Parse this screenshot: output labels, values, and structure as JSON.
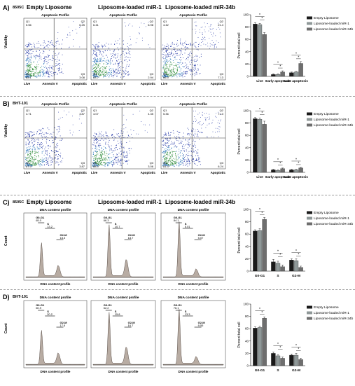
{
  "colors": {
    "empty": "#1a1a1a",
    "mir1": "#8f9898",
    "mir34b": "#6e6e6e",
    "hist_fill": "#b8aca3",
    "scatter_hot": "#2e8b3a",
    "scatter_cool": "#2b3ea8"
  },
  "panels": [
    {
      "letter": "A)",
      "cell_line": "8505C",
      "group_titles": [
        "Empty Liposome",
        "Liposome-loaded miR-1",
        "Liposome-loaded miR-34b"
      ],
      "plot_title": "Apoptosis Profile",
      "ylabel": "Viability",
      "xlabels": [
        "Live",
        "Annexin V",
        "Apoptotic"
      ],
      "quadrants": [
        {
          "Q1": "Q1",
          "Q1v": "5.56",
          "Q2": "Q2",
          "Q2v": "6.25",
          "Q3": "Q3",
          "Q3v": "3.08",
          "Q4": "Q4",
          "Q4v": "85.1"
        },
        {
          "Q1": "Q1",
          "Q1v": "6.41",
          "Q2": "Q2",
          "Q2v": "6.98",
          "Q3": "Q3",
          "Q3v": "2.94",
          "Q4": "Q4",
          "Q4v": "83.7"
        },
        {
          "Q1": "Q1",
          "Q1v": "4.42",
          "Q2": "Q2",
          "Q2v": "21.4",
          "Q3": "Q3",
          "Q3v": "7.13",
          "Q4": "Q4",
          "Q4v": "66.9"
        }
      ]
    },
    {
      "letter": "B)",
      "cell_line": "BHT-101",
      "group_titles": [
        "",
        "",
        ""
      ],
      "plot_title": "Apoptosis Profile",
      "ylabel": "Viability",
      "xlabels": [
        "Live",
        "Annexin V",
        "Apoptotic"
      ],
      "quadrants": [
        {
          "Q1": "Q1",
          "Q1v": "4.71",
          "Q2": "Q2",
          "Q2v": "3.87",
          "Q3": "Q3",
          "Q3v": "3.87",
          "Q4": "Q4",
          "Q4v": "87.5"
        },
        {
          "Q1": "Q1",
          "Q1v": "4.07",
          "Q2": "Q2",
          "Q2v": "4.35",
          "Q3": "Q3",
          "Q3v": "3.06",
          "Q4": "Q4",
          "Q4v": "88.0"
        },
        {
          "Q1": "Q1",
          "Q1v": "5.36",
          "Q2": "Q2",
          "Q2v": "7.13",
          "Q3": "Q3",
          "Q3v": "6.24",
          "Q4": "Q4",
          "Q4v": "81.3"
        }
      ]
    },
    {
      "letter": "C)",
      "cell_line": "8505C",
      "group_titles": [
        "Empty Liposome",
        "Liposome-loaded miR-1",
        "Liposome-loaded miR-34b"
      ],
      "plot_title": "DNA content profile",
      "ylabel": "Count",
      "xlabel": "DNA content profile",
      "phases": [
        {
          "g0": "G0-G1",
          "g0v": "65.0",
          "s": "S",
          "sv": "13.2",
          "g2": "G2-M",
          "g2v": "18.3"
        },
        {
          "g0": "G0-G1",
          "g0v": "66.3",
          "s": "S",
          "sv": "10.7",
          "g2": "G2-M",
          "g2v": "18.7"
        },
        {
          "g0": "G0-G1",
          "g0v": "84.1",
          "s": "S",
          "sv": "5.01",
          "g2": "G2-M",
          "g2v": "5.07"
        }
      ]
    },
    {
      "letter": "D)",
      "cell_line": "BHT-101",
      "group_titles": [
        "",
        "",
        ""
      ],
      "plot_title": "DNA content profile",
      "ylabel": "Count",
      "xlabel": "DNA content profile",
      "phases": [
        {
          "g0": "G0-G1",
          "g0v": "60.9",
          "s": "S",
          "sv": "20.2",
          "g2": "G2-M",
          "g2v": "17.6"
        },
        {
          "g0": "G0-G1",
          "g0v": "62.2",
          "s": "S",
          "sv": "15.8",
          "g2": "G2-M",
          "g2v": "16.7"
        },
        {
          "g0": "G0-G1",
          "g0v": "76.1",
          "s": "S",
          "sv": "13.3",
          "g2": "G2-M",
          "g2v": "9.55"
        }
      ]
    }
  ],
  "chart_data": [
    {
      "type": "bar",
      "panel": "A",
      "categories": [
        "Live",
        "Early apoptosis",
        "Late apoptosis"
      ],
      "series": [
        {
          "name": "Empty Liposome",
          "values": [
            85,
            3,
            6
          ],
          "errors": [
            2,
            1,
            1
          ]
        },
        {
          "name": "Liposome-loaded miR-1",
          "values": [
            84,
            3,
            7
          ],
          "errors": [
            2,
            1,
            1
          ]
        },
        {
          "name": "Liposome-loaded miR-34b",
          "values": [
            68,
            7,
            21
          ],
          "errors": [
            3,
            2,
            3
          ]
        }
      ],
      "ylabel": "Percent total cell",
      "ylim": [
        0,
        100
      ],
      "yticks": [
        "0",
        "20",
        "40",
        "60",
        "80",
        "100"
      ],
      "significance": "*"
    },
    {
      "type": "bar",
      "panel": "B",
      "categories": [
        "Live",
        "Early apoptosis",
        "Late apoptosis"
      ],
      "series": [
        {
          "name": "Empty Liposome",
          "values": [
            87,
            4,
            4
          ],
          "errors": [
            2,
            1,
            1
          ]
        },
        {
          "name": "Liposome-loaded miR-1",
          "values": [
            86,
            3,
            4
          ],
          "errors": [
            2,
            1,
            1
          ]
        },
        {
          "name": "Liposome-loaded miR-34b",
          "values": [
            78,
            6,
            7
          ],
          "errors": [
            5,
            1,
            1
          ]
        }
      ],
      "ylabel": "Percent total cell",
      "ylim": [
        0,
        100
      ],
      "yticks": [
        "0",
        "20",
        "40",
        "60",
        "80",
        "100"
      ],
      "significance": "*"
    },
    {
      "type": "bar",
      "panel": "C",
      "categories": [
        "G0-G1",
        "S",
        "G2-M"
      ],
      "series": [
        {
          "name": "Empty Liposome",
          "values": [
            65,
            15,
            18
          ],
          "errors": [
            2,
            4,
            2
          ]
        },
        {
          "name": "Liposome-loaded miR-1",
          "values": [
            66,
            13,
            17
          ],
          "errors": [
            3,
            3,
            3
          ]
        },
        {
          "name": "Liposome-loaded miR-34b",
          "values": [
            84,
            7,
            6
          ],
          "errors": [
            3,
            3,
            2
          ]
        }
      ],
      "ylabel": "Percent total cell",
      "ylim": [
        0,
        100
      ],
      "yticks": [
        "0",
        "20",
        "40",
        "60",
        "80",
        "100"
      ],
      "significance": "*"
    },
    {
      "type": "bar",
      "panel": "D",
      "categories": [
        "G0-G1",
        "S",
        "G2-M"
      ],
      "series": [
        {
          "name": "Empty Liposome",
          "values": [
            61,
            20,
            17
          ],
          "errors": [
            2,
            2,
            2
          ]
        },
        {
          "name": "Liposome-loaded miR-1",
          "values": [
            62,
            16,
            17
          ],
          "errors": [
            2,
            2,
            3
          ]
        },
        {
          "name": "Liposome-loaded miR-34b",
          "values": [
            77,
            12,
            10
          ],
          "errors": [
            2,
            2,
            2
          ]
        }
      ],
      "ylabel": "Percent total cell",
      "ylim": [
        0,
        100
      ],
      "yticks": [
        "0",
        "20",
        "40",
        "60",
        "80",
        "100"
      ],
      "significance": "*"
    }
  ]
}
